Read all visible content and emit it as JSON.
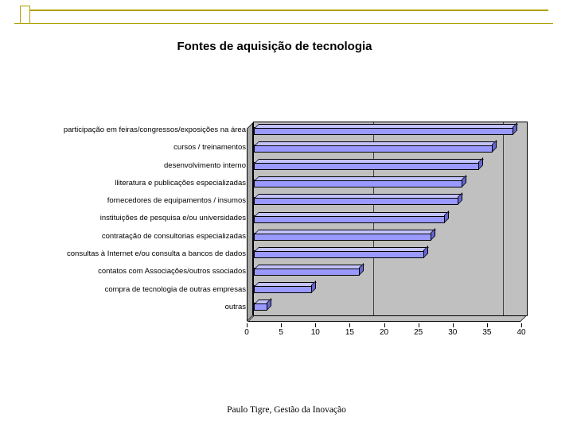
{
  "slide": {
    "title": "Fontes de aquisição de tecnologia",
    "footer": "Paulo Tigre, Gestão da Inovação",
    "accent_color": "#b0a000"
  },
  "chart_data": {
    "type": "bar",
    "orientation": "horizontal",
    "style": "3d",
    "title": "Fontes de aquisição de tecnologia",
    "categories": [
      "participação em feiras/congressos/exposições na área",
      "cursos / treinamentos",
      "desenvolvimento interno",
      "lliteratura e publicações especializadas",
      "fornecedores de equipamentos / insumos",
      "instituições de pesquisa e/ou universidades",
      "contratação de consultorias especializadas",
      "consultas à Internet e/ou consulta a bancos de dados",
      "contatos com Associações/outros ssociados",
      "compra de tecnologia de outras empresas",
      "outras"
    ],
    "values": [
      38,
      35,
      33,
      30.5,
      30,
      28,
      26,
      25,
      15.5,
      8.5,
      2
    ],
    "xlabel": "",
    "ylabel": "",
    "xlim": [
      0,
      40
    ],
    "xticks": [
      0,
      5,
      10,
      15,
      20,
      25,
      30,
      35,
      40
    ],
    "gridline_values": [
      17.5,
      36.5
    ],
    "legend": "none",
    "colors": {
      "bar": "#9999ff",
      "bar_top": "#c2c2ff",
      "bar_side": "#6666cc",
      "plot_bg": "#c0c0c0",
      "wall": "#a8a8a8",
      "axis": "#000000"
    }
  }
}
